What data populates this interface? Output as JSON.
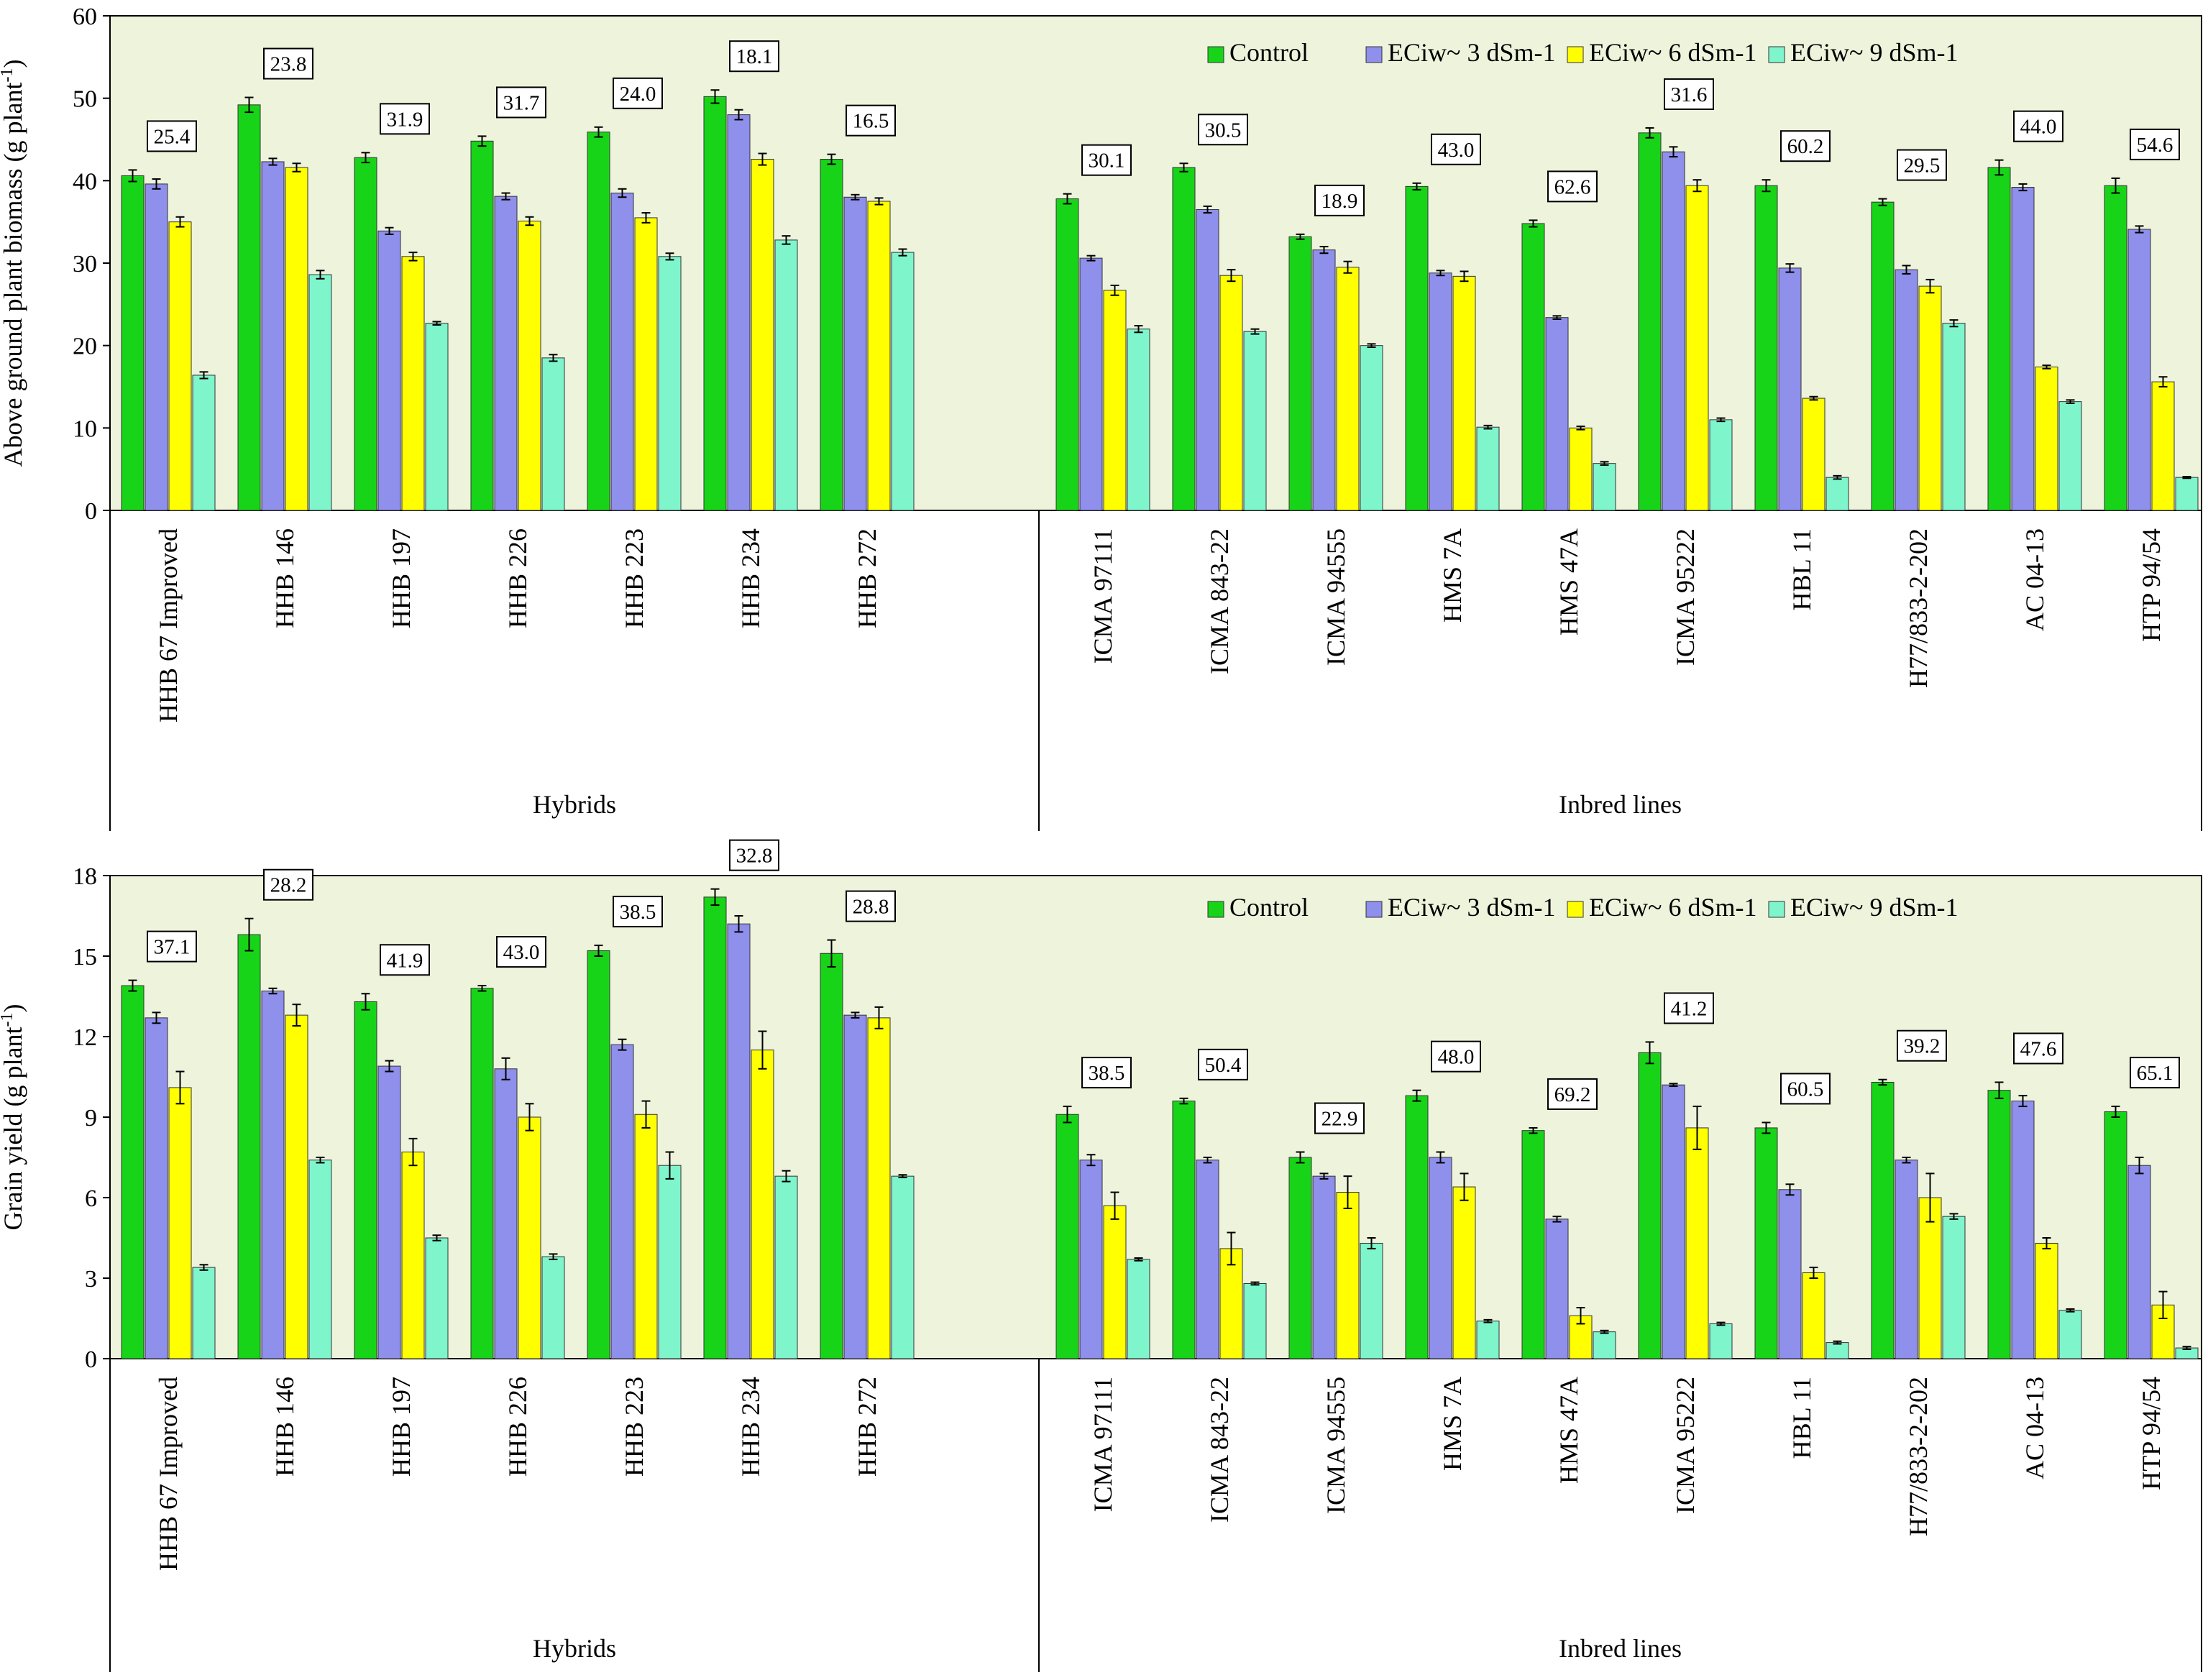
{
  "colors": {
    "plot_background": "#eef3dc",
    "series": [
      "#18d418",
      "#8f8fec",
      "#ffff00",
      "#7ff5cc"
    ]
  },
  "legend_labels": [
    "Control",
    "ECiw~ 3 dSm-1",
    "ECiw~ 6 dSm-1",
    "ECiw~ 9 dSm-1"
  ],
  "group_labels": [
    "Hybrids",
    "Inbred lines"
  ],
  "chart_data": [
    {
      "type": "bar",
      "ylabel": "Above ground plant biomass (g plant-1)",
      "ylabel_main": "Above ground plant biomass (g plant",
      "ylabel_sup": "-1",
      "ylabel_close": ")",
      "ylim": [
        0,
        60
      ],
      "yticks": [
        0,
        10,
        20,
        30,
        40,
        50,
        60
      ],
      "legend_position": "top-right",
      "categories": [
        "HHB 67 Improved",
        "HHB 146",
        "HHB 197",
        "HHB 226",
        "HHB 223",
        "HHB 234",
        "HHB 272",
        "ICMA 97111",
        "ICMA 843-22",
        "ICMA 94555",
        "HMS 7A",
        "HMS 47A",
        "ICMA 95222",
        "HBL 11",
        "H77/833-2-202",
        "AC 04-13",
        "HTP 94/54"
      ],
      "groups": [
        {
          "label": "Hybrids",
          "count": 7
        },
        {
          "label": "Inbred lines",
          "count": 10
        }
      ],
      "series": [
        {
          "name": "Control",
          "values": [
            40.6,
            49.2,
            42.8,
            44.8,
            45.9,
            50.2,
            42.6,
            37.8,
            41.6,
            33.2,
            39.3,
            34.8,
            45.8,
            39.4,
            37.4,
            41.6,
            39.4
          ],
          "errors": [
            0.7,
            0.9,
            0.6,
            0.6,
            0.6,
            0.8,
            0.6,
            0.6,
            0.5,
            0.3,
            0.4,
            0.4,
            0.6,
            0.7,
            0.4,
            0.9,
            0.9
          ]
        },
        {
          "name": "ECiw~ 3 dSm-1",
          "values": [
            39.6,
            42.3,
            33.9,
            38.1,
            38.5,
            48.0,
            38.0,
            30.6,
            36.5,
            31.6,
            28.8,
            23.4,
            43.5,
            29.4,
            29.2,
            39.2,
            34.1
          ],
          "errors": [
            0.6,
            0.4,
            0.4,
            0.4,
            0.5,
            0.6,
            0.3,
            0.3,
            0.4,
            0.4,
            0.3,
            0.2,
            0.6,
            0.5,
            0.5,
            0.4,
            0.4
          ]
        },
        {
          "name": "ECiw~ 6 dSm-1",
          "values": [
            35.0,
            41.6,
            30.8,
            35.1,
            35.5,
            42.6,
            37.5,
            26.7,
            28.5,
            29.5,
            28.4,
            10.0,
            39.4,
            13.6,
            27.2,
            17.4,
            15.6
          ],
          "errors": [
            0.6,
            0.5,
            0.5,
            0.5,
            0.6,
            0.7,
            0.4,
            0.6,
            0.7,
            0.7,
            0.6,
            0.2,
            0.7,
            0.2,
            0.8,
            0.2,
            0.6
          ]
        },
        {
          "name": "ECiw~ 9 dSm-1",
          "values": [
            16.4,
            28.6,
            22.7,
            18.5,
            30.8,
            32.8,
            31.3,
            22.0,
            21.7,
            20.0,
            10.1,
            5.7,
            11.0,
            4.0,
            22.7,
            13.2,
            4.0
          ],
          "errors": [
            0.4,
            0.5,
            0.2,
            0.4,
            0.4,
            0.5,
            0.4,
            0.4,
            0.3,
            0.2,
            0.2,
            0.2,
            0.2,
            0.2,
            0.4,
            0.2,
            0.1
          ]
        }
      ],
      "annotations": [
        "25.4",
        "23.8",
        "31.9",
        "31.7",
        "24.0",
        "18.1",
        "16.5",
        "30.1",
        "30.5",
        "18.9",
        "43.0",
        "62.6",
        "31.6",
        "60.2",
        "29.5",
        "44.0",
        "54.6"
      ]
    },
    {
      "type": "bar",
      "ylabel": "Grain yield (g plant-1)",
      "ylabel_main": "Grain yield (g plant",
      "ylabel_sup": "-1",
      "ylabel_close": ")",
      "ylim": [
        0,
        18
      ],
      "yticks": [
        0,
        3,
        6,
        9,
        12,
        15,
        18
      ],
      "legend_position": "top-right",
      "categories": [
        "HHB 67 Improved",
        "HHB 146",
        "HHB 197",
        "HHB 226",
        "HHB 223",
        "HHB 234",
        "HHB 272",
        "ICMA 97111",
        "ICMA 843-22",
        "ICMA 94555",
        "HMS 7A",
        "HMS 47A",
        "ICMA 95222",
        "HBL 11",
        "H77/833-2-202",
        "AC 04-13",
        "HTP 94/54"
      ],
      "groups": [
        {
          "label": "Hybrids",
          "count": 7
        },
        {
          "label": "Inbred lines",
          "count": 10
        }
      ],
      "series": [
        {
          "name": "Control",
          "values": [
            13.9,
            15.8,
            13.3,
            13.8,
            15.2,
            17.2,
            15.1,
            9.1,
            9.6,
            7.5,
            9.8,
            8.5,
            11.4,
            8.6,
            10.3,
            10.0,
            9.2
          ],
          "errors": [
            0.2,
            0.6,
            0.3,
            0.1,
            0.2,
            0.3,
            0.5,
            0.3,
            0.1,
            0.2,
            0.2,
            0.1,
            0.4,
            0.2,
            0.1,
            0.3,
            0.2
          ]
        },
        {
          "name": "ECiw~ 3 dSm-1",
          "values": [
            12.7,
            13.7,
            10.9,
            10.8,
            11.7,
            16.2,
            12.8,
            7.4,
            7.4,
            6.8,
            7.5,
            5.2,
            10.2,
            6.3,
            7.4,
            9.6,
            7.2
          ],
          "errors": [
            0.2,
            0.1,
            0.2,
            0.4,
            0.2,
            0.3,
            0.1,
            0.2,
            0.1,
            0.1,
            0.2,
            0.1,
            0.05,
            0.2,
            0.1,
            0.2,
            0.3
          ]
        },
        {
          "name": "ECiw~ 6 dSm-1",
          "values": [
            10.1,
            12.8,
            7.7,
            9.0,
            9.1,
            11.5,
            12.7,
            5.7,
            4.1,
            6.2,
            6.4,
            1.6,
            8.6,
            3.2,
            6.0,
            4.3,
            2.0
          ],
          "errors": [
            0.6,
            0.4,
            0.5,
            0.5,
            0.5,
            0.7,
            0.4,
            0.5,
            0.6,
            0.6,
            0.5,
            0.3,
            0.8,
            0.2,
            0.9,
            0.2,
            0.5
          ]
        },
        {
          "name": "ECiw~ 9 dSm-1",
          "values": [
            3.4,
            7.4,
            4.5,
            3.8,
            7.2,
            6.8,
            6.8,
            3.7,
            2.8,
            4.3,
            1.4,
            1.0,
            1.3,
            0.6,
            5.3,
            1.8,
            0.4
          ],
          "errors": [
            0.1,
            0.1,
            0.1,
            0.1,
            0.5,
            0.2,
            0.05,
            0.05,
            0.05,
            0.2,
            0.05,
            0.05,
            0.05,
            0.05,
            0.1,
            0.05,
            0.05
          ]
        }
      ],
      "annotations": [
        "37.1",
        "28.2",
        "41.9",
        "43.0",
        "38.5",
        "32.8",
        "28.8",
        "38.5",
        "50.4",
        "22.9",
        "48.0",
        "69.2",
        "41.2",
        "60.5",
        "39.2",
        "47.6",
        "65.1"
      ]
    }
  ]
}
